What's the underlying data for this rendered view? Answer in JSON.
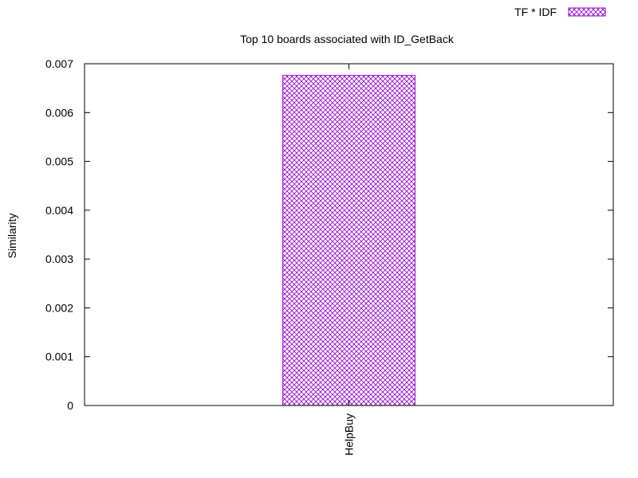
{
  "chart_data": {
    "type": "bar",
    "title": "Top 10 boards associated with ID_GetBack",
    "xlabel": "",
    "ylabel": "Similarity",
    "categories": [
      "HelpBuy"
    ],
    "series": [
      {
        "name": "TF * IDF",
        "values": [
          0.00676
        ],
        "color": "#9400d3",
        "pattern": "crosshatch"
      }
    ],
    "ylim": [
      0,
      0.007
    ],
    "yticks": [
      "0",
      "0.001",
      "0.002",
      "0.003",
      "0.004",
      "0.005",
      "0.006",
      "0.007"
    ],
    "grid": false,
    "legend_position": "top-right",
    "x_tick_rotation": "vertical"
  }
}
